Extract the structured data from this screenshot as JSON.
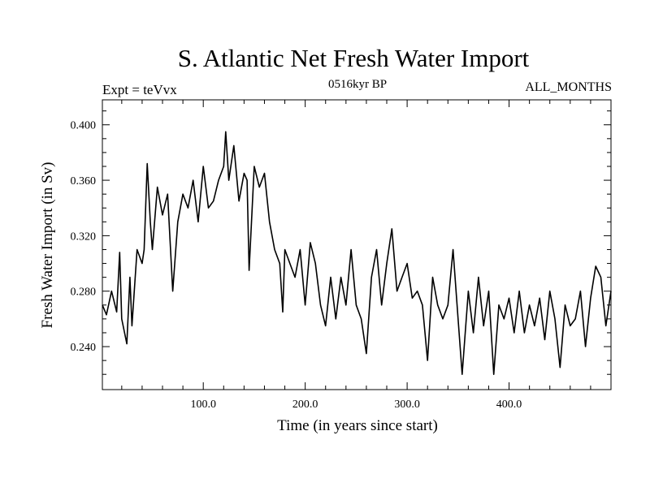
{
  "chart_data": {
    "type": "line",
    "title": "S. Atlantic Net Fresh Water Import",
    "subtitle_left": "Expt = teVvx",
    "subtitle_center": "0516kyr BP",
    "subtitle_right": "ALL_MONTHS",
    "xlabel": "Time (in years since start)",
    "ylabel": "Fresh Water Import (in Sv)",
    "xlim": [
      1,
      500
    ],
    "ylim": [
      0.209,
      0.418
    ],
    "x_ticks": [
      100,
      200,
      300,
      400
    ],
    "x_tick_labels": [
      "100.0",
      "200.0",
      "300.0",
      "400.0"
    ],
    "y_ticks": [
      0.24,
      0.28,
      0.32,
      0.36,
      0.4
    ],
    "y_tick_labels": [
      "0.240",
      "0.280",
      "0.320",
      "0.360",
      "0.400"
    ],
    "grid": false,
    "series": [
      {
        "x": [
          1,
          5,
          10,
          15,
          18,
          20,
          25,
          28,
          30,
          35,
          40,
          42,
          45,
          48,
          50,
          55,
          60,
          65,
          70,
          75,
          80,
          85,
          90,
          95,
          100,
          105,
          110,
          115,
          120,
          122,
          125,
          130,
          135,
          140,
          143,
          145,
          150,
          155,
          160,
          165,
          170,
          175,
          178,
          180,
          185,
          190,
          195,
          200,
          205,
          210,
          215,
          220,
          225,
          230,
          235,
          240,
          245,
          250,
          255,
          260,
          265,
          270,
          275,
          280,
          285,
          290,
          295,
          300,
          305,
          310,
          315,
          320,
          325,
          330,
          335,
          340,
          345,
          350,
          354,
          360,
          365,
          370,
          375,
          380,
          385,
          390,
          395,
          400,
          405,
          410,
          415,
          420,
          425,
          430,
          435,
          440,
          445,
          450,
          455,
          460,
          465,
          470,
          475,
          480,
          485,
          490,
          495,
          500
        ],
        "values": [
          0.27,
          0.263,
          0.28,
          0.265,
          0.308,
          0.26,
          0.242,
          0.29,
          0.255,
          0.31,
          0.3,
          0.31,
          0.372,
          0.33,
          0.31,
          0.355,
          0.335,
          0.35,
          0.28,
          0.33,
          0.35,
          0.34,
          0.36,
          0.33,
          0.37,
          0.34,
          0.345,
          0.36,
          0.37,
          0.395,
          0.36,
          0.385,
          0.345,
          0.365,
          0.36,
          0.295,
          0.37,
          0.355,
          0.365,
          0.33,
          0.31,
          0.3,
          0.265,
          0.31,
          0.3,
          0.29,
          0.31,
          0.27,
          0.315,
          0.3,
          0.27,
          0.255,
          0.29,
          0.26,
          0.29,
          0.27,
          0.31,
          0.27,
          0.26,
          0.235,
          0.29,
          0.31,
          0.27,
          0.3,
          0.325,
          0.28,
          0.29,
          0.3,
          0.275,
          0.28,
          0.27,
          0.23,
          0.29,
          0.27,
          0.26,
          0.27,
          0.31,
          0.26,
          0.22,
          0.28,
          0.25,
          0.29,
          0.255,
          0.28,
          0.22,
          0.27,
          0.26,
          0.275,
          0.25,
          0.28,
          0.25,
          0.27,
          0.255,
          0.275,
          0.245,
          0.28,
          0.26,
          0.225,
          0.27,
          0.255,
          0.26,
          0.28,
          0.24,
          0.275,
          0.298,
          0.29,
          0.255,
          0.28
        ],
        "color": "#000000"
      }
    ]
  }
}
